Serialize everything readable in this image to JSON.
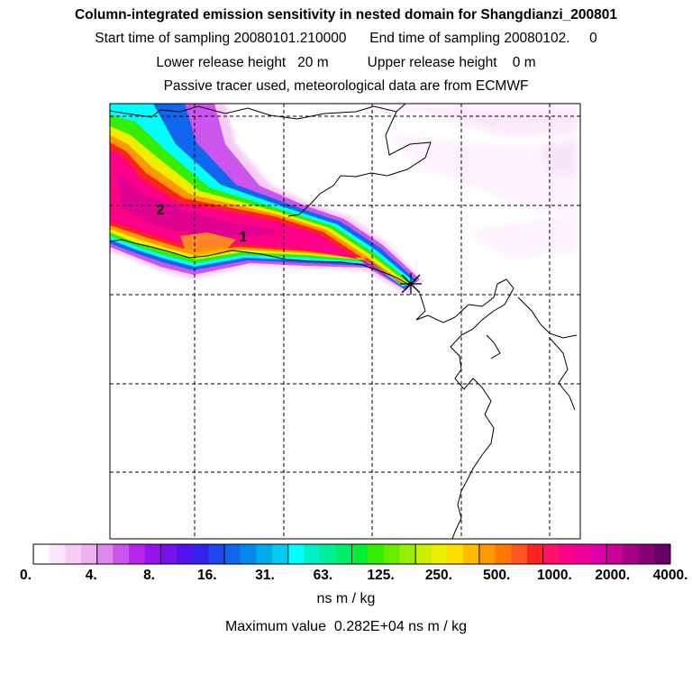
{
  "header": {
    "title": "Column-integrated emission sensitivity in nested domain for Shangdianzi_200801",
    "line2": "Start time of sampling 20080101.210000      End time of sampling 20080102.     0",
    "line3": "Lower release height   20 m          Upper release height    0 m",
    "line4": "Passive tracer used, meteorological data are from ECMWF"
  },
  "map": {
    "markers": [
      {
        "label": "1"
      },
      {
        "label": "2"
      }
    ],
    "release_site_symbol": "star-cross-icon"
  },
  "colorbar": {
    "tick_labels": [
      "0.",
      "4.",
      "8.",
      "16.",
      "31.",
      "63.",
      "125.",
      "250.",
      "500.",
      "1000.",
      "2000.",
      "4000."
    ],
    "colors": [
      "#ffffff",
      "#fbe6fb",
      "#f6ccf6",
      "#f0b0f0",
      "#dd88ee",
      "#cc55ee",
      "#b822ee",
      "#9911ee",
      "#7711ee",
      "#5511ee",
      "#3322ee",
      "#2244ee",
      "#1166ee",
      "#0088ee",
      "#00aaee",
      "#00ccee",
      "#00ffff",
      "#00eecc",
      "#00ee99",
      "#00ee66",
      "#00ee33",
      "#33ee00",
      "#66ee00",
      "#99ee00",
      "#ccee00",
      "#eeee00",
      "#ffdd00",
      "#ffbb00",
      "#ff9900",
      "#ff7700",
      "#ff5522",
      "#ff2222",
      "#ff1166",
      "#ff0088",
      "#ee0099",
      "#dd00aa",
      "#cc0099",
      "#aa0088",
      "#880077",
      "#660066"
    ],
    "units": "ns m / kg"
  },
  "footer": {
    "max_value_text": "Maximum value  0.282E+04 ns m / kg"
  }
}
